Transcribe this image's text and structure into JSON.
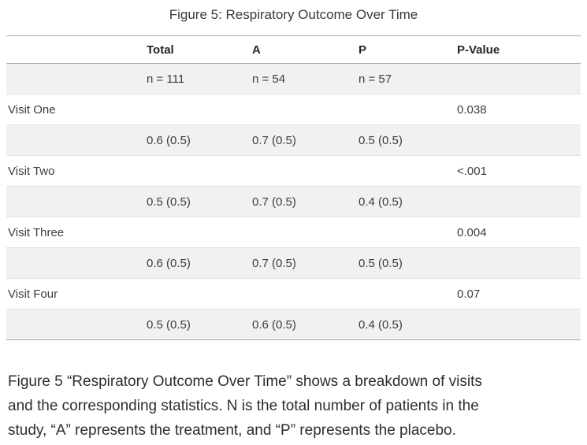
{
  "chart_data": {
    "type": "table",
    "title": "Figure 5: Respiratory Outcome Over Time",
    "columns": [
      "",
      "Total",
      "A",
      "P",
      "P-Value"
    ],
    "rows": [
      [
        "",
        "n = 111",
        "n = 54",
        "n = 57",
        ""
      ],
      [
        "Visit One",
        "",
        "",
        "",
        "0.038"
      ],
      [
        "",
        "0.6 (0.5)",
        "0.7 (0.5)",
        "0.5 (0.5)",
        ""
      ],
      [
        "Visit Two",
        "",
        "",
        "",
        "<.001"
      ],
      [
        "",
        "0.5 (0.5)",
        "0.7 (0.5)",
        "0.4 (0.5)",
        ""
      ],
      [
        "Visit Three",
        "",
        "",
        "",
        "0.004"
      ],
      [
        "",
        "0.6 (0.5)",
        "0.7 (0.5)",
        "0.5 (0.5)",
        ""
      ],
      [
        "Visit Four",
        "",
        "",
        "",
        "0.07"
      ],
      [
        "",
        "0.5 (0.5)",
        "0.6 (0.5)",
        "0.4 (0.5)",
        ""
      ]
    ],
    "caption_lines": [
      "Figure 5 “Respiratory Outcome Over Time” shows a breakdown of visits",
      "and the corresponding statistics. N is the total number of patients in the",
      "study, “A” represents the treatment, and “P” represents the placebo."
    ],
    "layout_hints": {
      "row_striping": "alternating starting with first body row shaded",
      "grid": "horizontal lines only",
      "strong_borders": "table top, header bottom, table bottom",
      "legend": "none"
    }
  },
  "colors": {
    "background": "#ffffff",
    "row_stripe": "#f1f1f1",
    "strong_border": "#a9a9a9",
    "light_border": "#e2e2e2",
    "body_text": "#3c3c3c",
    "header_text": "#252525"
  }
}
